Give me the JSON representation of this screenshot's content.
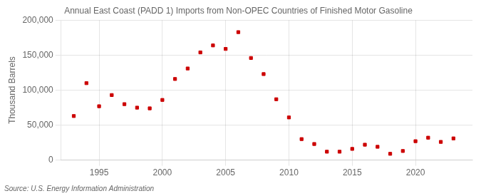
{
  "chart_data": {
    "type": "scatter",
    "title": "Annual East Coast (PADD 1) Imports from Non-OPEC Countries of Finished Motor Gasoline",
    "ylabel": "Thousand Barrels",
    "source": "Source: U.S. Energy Information Administration",
    "x": [
      1993,
      1994,
      1995,
      1996,
      1997,
      1998,
      1999,
      2000,
      2001,
      2002,
      2003,
      2004,
      2005,
      2006,
      2007,
      2008,
      2009,
      2010,
      2011,
      2012,
      2013,
      2014,
      2015,
      2016,
      2017,
      2018,
      2019,
      2020,
      2021,
      2022,
      2023
    ],
    "values": [
      63000,
      110000,
      77000,
      93000,
      80000,
      75000,
      74000,
      86000,
      116000,
      131000,
      154000,
      164000,
      159000,
      183000,
      146000,
      123000,
      87000,
      61000,
      30000,
      23000,
      12000,
      12000,
      16000,
      22000,
      19000,
      9000,
      13000,
      27000,
      32000,
      26000,
      31000
    ],
    "color": "#cc0000",
    "marker": "square",
    "xlim": [
      1992,
      2024.5
    ],
    "xticks": [
      1995,
      2000,
      2005,
      2010,
      2015,
      2020
    ],
    "ylim": [
      0,
      200000
    ],
    "yticks": [
      0,
      {
        "value": 50000,
        "label": "50,000"
      },
      {
        "value": 100000,
        "label": "100,000"
      },
      {
        "value": 150000,
        "label": "150,000"
      },
      {
        "value": 200000,
        "label": "200,000"
      }
    ],
    "grid": true
  }
}
